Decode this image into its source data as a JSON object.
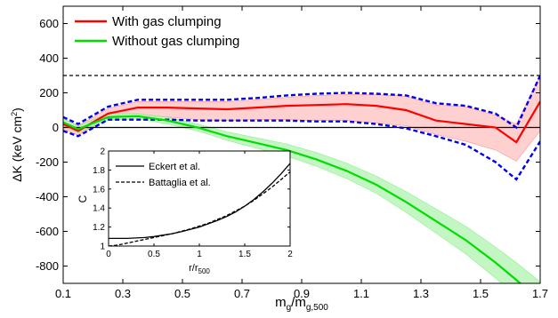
{
  "chart_data": [
    {
      "type": "line",
      "xlabel": "m",
      "xlabel_sub": "g",
      "xlabel_mid": "/m",
      "xlabel_sub2": "g,500",
      "ylabel": "ΔK (keV cm",
      "ylabel_sup": "2",
      "ylabel_end": ")",
      "xlim": [
        0.1,
        1.7
      ],
      "ylim": [
        -900,
        700
      ],
      "xticks": [
        "0.1",
        "0.3",
        "0.5",
        "0.7",
        "0.9",
        "1.1",
        "1.3",
        "1.5",
        "1.7"
      ],
      "yticks": [
        "-800",
        "-600",
        "-400",
        "-200",
        "0",
        "200",
        "400",
        "600"
      ],
      "x": [
        0.1,
        0.15,
        0.25,
        0.35,
        0.45,
        0.55,
        0.65,
        0.75,
        0.85,
        0.95,
        1.05,
        1.15,
        1.25,
        1.35,
        1.45,
        1.55,
        1.62,
        1.7
      ],
      "series": [
        {
          "name": "With gas clumping",
          "color": "#ff0000",
          "values": [
            20,
            -20,
            80,
            115,
            115,
            110,
            105,
            115,
            125,
            130,
            135,
            125,
            100,
            40,
            20,
            0,
            -85,
            150
          ],
          "band_upper": [
            50,
            10,
            110,
            150,
            150,
            150,
            150,
            160,
            175,
            185,
            190,
            190,
            180,
            130,
            120,
            70,
            20,
            300
          ],
          "band_lower": [
            -10,
            -45,
            50,
            65,
            60,
            45,
            40,
            45,
            45,
            40,
            40,
            25,
            10,
            -40,
            -80,
            -130,
            -195,
            -20
          ],
          "dashed_upper": [
            60,
            20,
            120,
            160,
            160,
            160,
            160,
            170,
            185,
            195,
            200,
            195,
            185,
            140,
            125,
            80,
            0,
            300
          ],
          "dashed_lower": [
            -20,
            -50,
            45,
            45,
            45,
            40,
            40,
            40,
            40,
            35,
            35,
            20,
            -5,
            -50,
            -100,
            -200,
            -300,
            -80
          ]
        },
        {
          "name": "Without gas clumping",
          "color": "#00dd00",
          "values": [
            30,
            -10,
            60,
            65,
            40,
            0,
            -50,
            -90,
            -130,
            -185,
            -250,
            -330,
            -430,
            -540,
            -650,
            -780,
            -880,
            -1000
          ],
          "band_upper": [
            50,
            10,
            80,
            80,
            60,
            20,
            -25,
            -60,
            -95,
            -145,
            -205,
            -280,
            -370,
            -470,
            -570,
            -690,
            -780,
            -890
          ],
          "band_lower": [
            10,
            -30,
            40,
            50,
            20,
            -20,
            -75,
            -120,
            -165,
            -225,
            -295,
            -380,
            -490,
            -610,
            -730,
            -870,
            -980,
            -1100
          ]
        }
      ],
      "reference_lines": [
        {
          "y": 300,
          "style": "dashed"
        },
        {
          "y": 0,
          "style": "solid"
        }
      ],
      "legend_position": "top-left"
    },
    {
      "type": "line",
      "xlabel": "r/r",
      "xlabel_sub": "500",
      "ylabel": "C",
      "xlim": [
        0,
        2
      ],
      "ylim": [
        1,
        2
      ],
      "xticks": [
        "0",
        "0.5",
        "1",
        "1.5",
        "2"
      ],
      "yticks": [
        "1",
        "1.2",
        "1.4",
        "1.6",
        "1.8",
        "2"
      ],
      "x": [
        0,
        0.1,
        0.2,
        0.3,
        0.4,
        0.5,
        0.6,
        0.7,
        0.8,
        0.9,
        1.0,
        1.1,
        1.2,
        1.3,
        1.4,
        1.5,
        1.6,
        1.7,
        1.8,
        1.9,
        2.0
      ],
      "series": [
        {
          "name": "Eckert et al.",
          "style": "solid",
          "values": [
            1.08,
            1.08,
            1.08,
            1.085,
            1.09,
            1.1,
            1.115,
            1.13,
            1.15,
            1.175,
            1.2,
            1.235,
            1.27,
            1.31,
            1.36,
            1.42,
            1.49,
            1.57,
            1.66,
            1.76,
            1.87
          ]
        },
        {
          "name": "Battaglia et al.",
          "style": "dashed",
          "values": [
            1.0,
            1.01,
            1.03,
            1.05,
            1.07,
            1.09,
            1.11,
            1.13,
            1.155,
            1.18,
            1.21,
            1.24,
            1.28,
            1.32,
            1.37,
            1.42,
            1.48,
            1.55,
            1.62,
            1.7,
            1.78
          ]
        }
      ],
      "legend_position": "top-left"
    }
  ]
}
